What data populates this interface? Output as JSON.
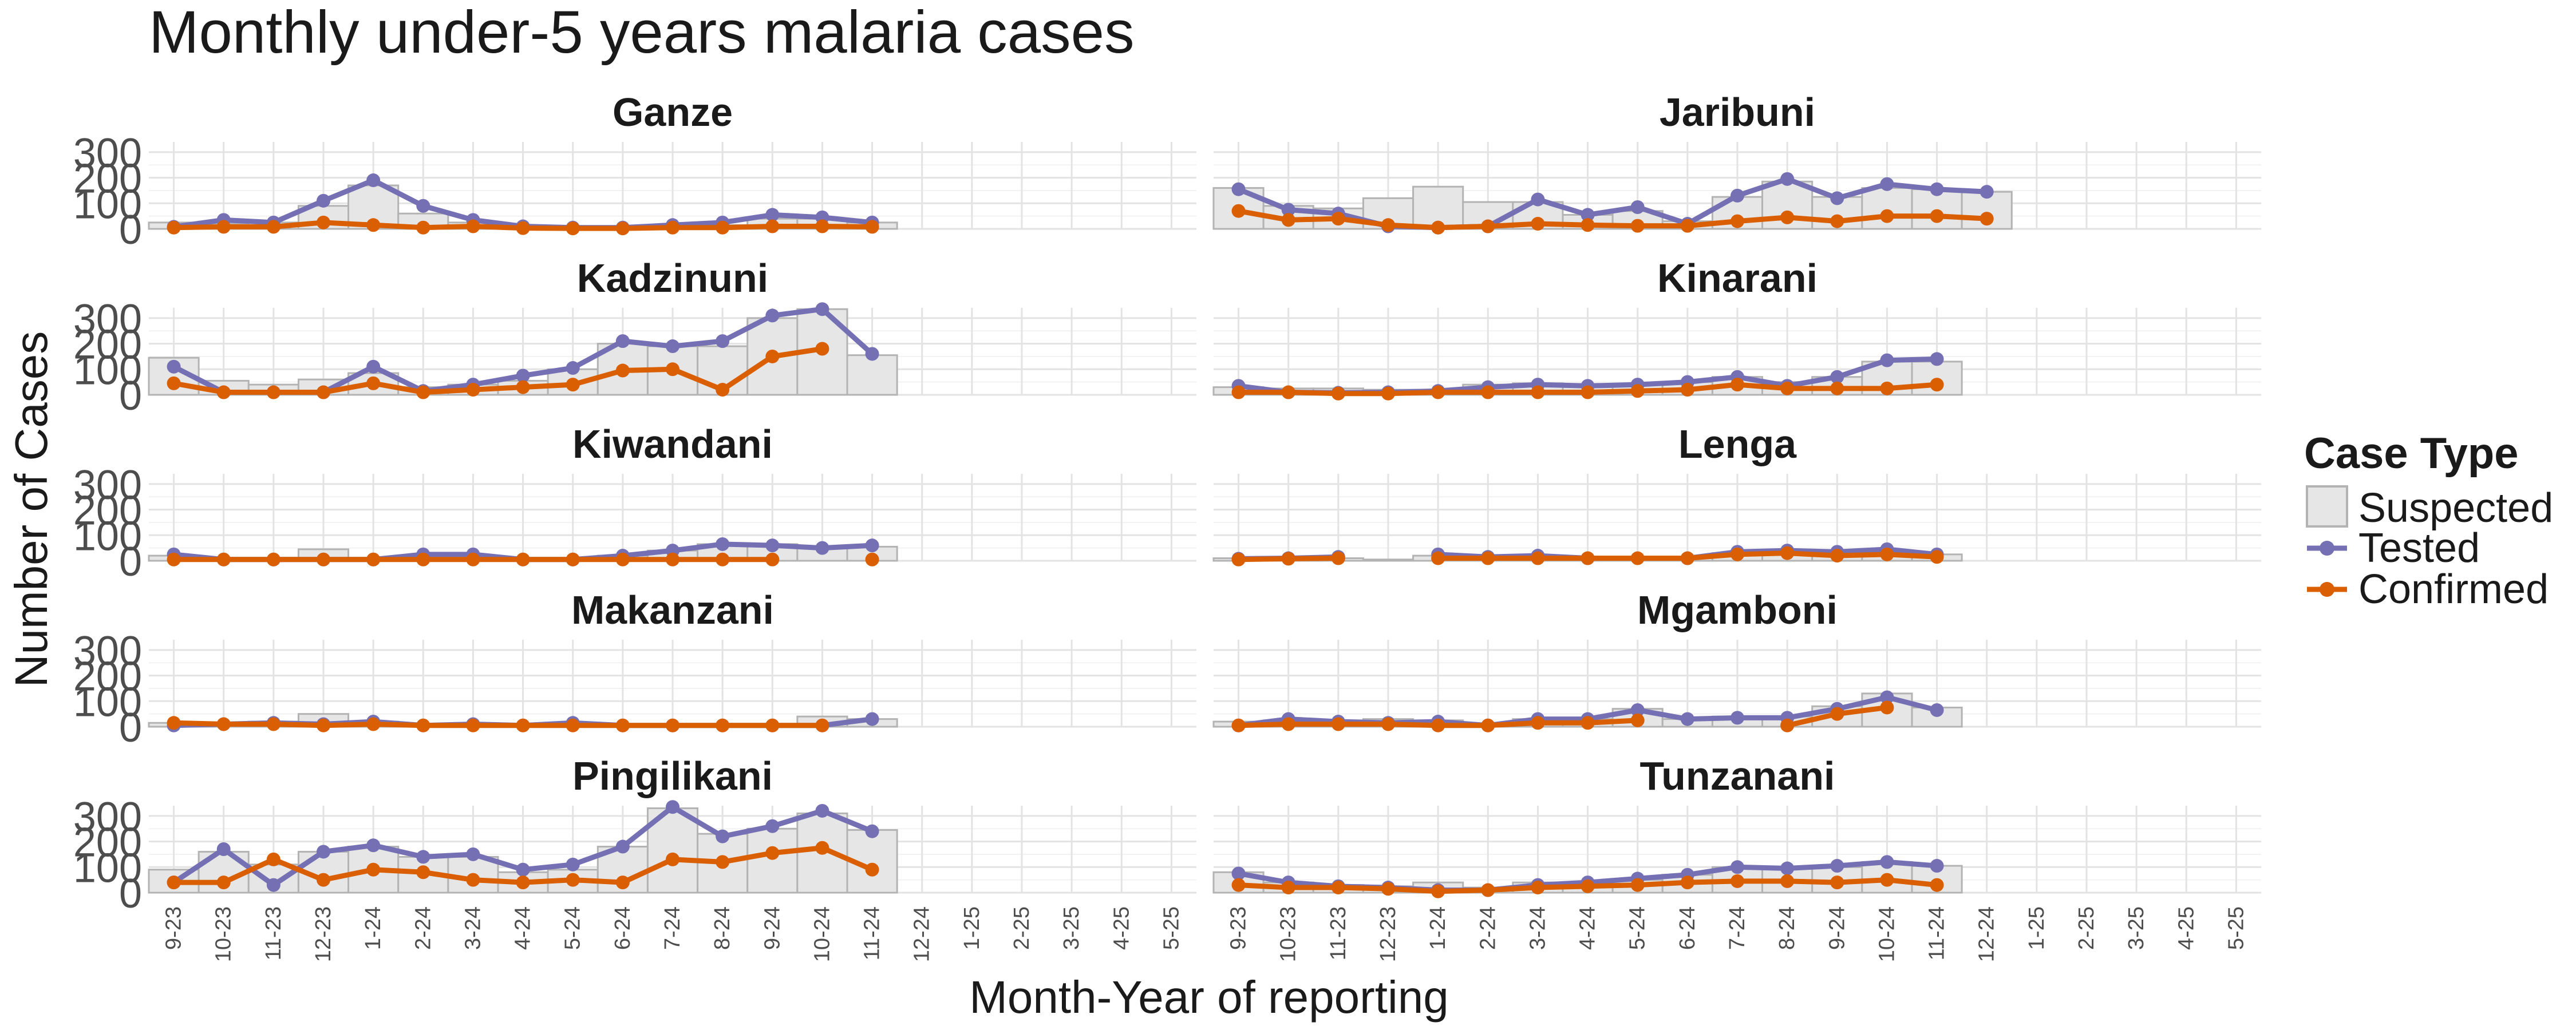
{
  "chart_data": {
    "type": "bar",
    "title": "Monthly under-5 years malaria cases",
    "xlabel": "Month-Year of reporting",
    "ylabel": "Number of Cases",
    "ylim": [
      0,
      340
    ],
    "yticks": [
      0,
      100,
      200,
      300
    ],
    "grid": true,
    "categories": [
      "9-23",
      "10-23",
      "11-23",
      "12-23",
      "1-24",
      "2-24",
      "3-24",
      "4-24",
      "5-24",
      "6-24",
      "7-24",
      "8-24",
      "9-24",
      "10-24",
      "11-24",
      "12-24",
      "1-25",
      "2-25",
      "3-25",
      "4-25",
      "5-25"
    ],
    "legend": {
      "title": "Case Type",
      "position": "right",
      "items": [
        {
          "label": "Suspected",
          "kind": "bar"
        },
        {
          "label": "Tested",
          "kind": "line",
          "color": "#7570b3"
        },
        {
          "label": "Confirmed",
          "kind": "line",
          "color": "#d95f02"
        }
      ]
    },
    "colors": {
      "suspected_fill": "#e6e6e6",
      "suspected_stroke": "#b3b3b3",
      "tested": "#7570b3",
      "confirmed": "#d95f02"
    },
    "panels": [
      {
        "name": "Ganze",
        "suspected": [
          25,
          20,
          25,
          90,
          170,
          60,
          25,
          8,
          5,
          5,
          10,
          15,
          40,
          40,
          25,
          null,
          null,
          null,
          null,
          null,
          null
        ],
        "tested": [
          8,
          35,
          25,
          110,
          190,
          90,
          35,
          10,
          5,
          5,
          15,
          25,
          55,
          45,
          25,
          null,
          null,
          null,
          null,
          null,
          null
        ],
        "confirmed": [
          5,
          8,
          8,
          25,
          15,
          5,
          10,
          3,
          2,
          2,
          5,
          5,
          10,
          10,
          8,
          null,
          null,
          null,
          null,
          null,
          null
        ]
      },
      {
        "name": "Jaribuni",
        "suspected": [
          160,
          90,
          80,
          120,
          165,
          105,
          105,
          55,
          70,
          30,
          125,
          185,
          125,
          160,
          155,
          145,
          null,
          null,
          null,
          null,
          null
        ],
        "tested": [
          155,
          75,
          60,
          10,
          5,
          10,
          115,
          55,
          85,
          20,
          130,
          195,
          120,
          175,
          155,
          145,
          null,
          null,
          null,
          null,
          null
        ],
        "confirmed": [
          70,
          35,
          40,
          15,
          5,
          10,
          20,
          15,
          12,
          12,
          30,
          45,
          30,
          50,
          50,
          40,
          null,
          null,
          null,
          null,
          null
        ]
      },
      {
        "name": "Kadzinuni",
        "suspected": [
          145,
          55,
          40,
          60,
          85,
          30,
          40,
          55,
          100,
          200,
          190,
          190,
          300,
          335,
          155,
          null,
          null,
          null,
          null,
          null,
          null
        ],
        "tested": [
          110,
          10,
          10,
          10,
          110,
          15,
          40,
          75,
          105,
          210,
          190,
          210,
          310,
          335,
          160,
          null,
          null,
          null,
          null,
          null,
          null
        ],
        "confirmed": [
          45,
          10,
          10,
          10,
          45,
          10,
          20,
          30,
          40,
          95,
          100,
          20,
          150,
          180,
          null,
          null,
          null,
          null,
          null,
          null,
          null
        ]
      },
      {
        "name": "Kinarani",
        "suspected": [
          30,
          25,
          25,
          20,
          20,
          40,
          45,
          40,
          40,
          50,
          70,
          50,
          70,
          130,
          130,
          null,
          null,
          null,
          null,
          null,
          null
        ],
        "tested": [
          35,
          10,
          8,
          10,
          15,
          30,
          40,
          35,
          40,
          50,
          70,
          35,
          70,
          135,
          140,
          null,
          null,
          null,
          null,
          null,
          null
        ],
        "confirmed": [
          10,
          10,
          5,
          5,
          10,
          10,
          10,
          10,
          15,
          20,
          40,
          25,
          25,
          25,
          40,
          null,
          null,
          null,
          null,
          null,
          null
        ]
      },
      {
        "name": "Kiwandani",
        "suspected": [
          20,
          10,
          8,
          45,
          10,
          20,
          20,
          10,
          10,
          20,
          40,
          65,
          65,
          55,
          55,
          null,
          null,
          null,
          null,
          null,
          null
        ],
        "tested": [
          25,
          5,
          5,
          5,
          5,
          25,
          25,
          5,
          5,
          20,
          40,
          65,
          60,
          50,
          60,
          null,
          null,
          null,
          null,
          null,
          null
        ],
        "confirmed": [
          5,
          5,
          5,
          5,
          5,
          5,
          5,
          5,
          5,
          5,
          5,
          5,
          5,
          null,
          5,
          null,
          null,
          null,
          null,
          null,
          null
        ]
      },
      {
        "name": "Lenga",
        "suspected": [
          10,
          10,
          10,
          5,
          20,
          15,
          15,
          10,
          10,
          10,
          30,
          35,
          30,
          40,
          25,
          null,
          null,
          null,
          null,
          null,
          null
        ],
        "tested": [
          8,
          10,
          15,
          null,
          25,
          15,
          20,
          10,
          null,
          10,
          35,
          40,
          35,
          45,
          25,
          null,
          null,
          null,
          null,
          null,
          null
        ],
        "confirmed": [
          5,
          8,
          10,
          null,
          10,
          10,
          10,
          10,
          10,
          10,
          25,
          30,
          20,
          25,
          15,
          null,
          null,
          null,
          null,
          null,
          null
        ]
      },
      {
        "name": "Makanzani",
        "suspected": [
          15,
          15,
          20,
          50,
          20,
          8,
          8,
          8,
          15,
          8,
          5,
          5,
          5,
          40,
          30,
          null,
          null,
          null,
          null,
          null,
          null
        ],
        "tested": [
          5,
          10,
          15,
          10,
          20,
          5,
          10,
          5,
          15,
          5,
          5,
          5,
          5,
          5,
          30,
          null,
          null,
          null,
          null,
          null,
          null
        ],
        "confirmed": [
          15,
          10,
          10,
          5,
          10,
          5,
          5,
          5,
          5,
          5,
          5,
          5,
          5,
          5,
          null,
          null,
          null,
          null,
          null,
          null,
          null
        ]
      },
      {
        "name": "Mgamboni",
        "suspected": [
          20,
          25,
          25,
          30,
          25,
          10,
          30,
          30,
          70,
          30,
          40,
          40,
          80,
          130,
          75,
          null,
          null,
          null,
          null,
          null,
          null
        ],
        "tested": [
          5,
          30,
          20,
          15,
          20,
          5,
          30,
          30,
          65,
          30,
          35,
          35,
          70,
          115,
          65,
          null,
          null,
          null,
          null,
          null,
          null
        ],
        "confirmed": [
          5,
          10,
          10,
          10,
          5,
          5,
          15,
          15,
          25,
          null,
          null,
          5,
          50,
          75,
          null,
          null,
          null,
          null,
          null,
          null,
          null
        ]
      },
      {
        "name": "Pingilikani",
        "suspected": [
          90,
          160,
          110,
          160,
          180,
          140,
          140,
          80,
          90,
          180,
          330,
          230,
          250,
          310,
          245,
          null,
          null,
          null,
          null,
          null,
          null
        ],
        "tested": [
          40,
          170,
          30,
          160,
          185,
          140,
          150,
          90,
          110,
          180,
          335,
          220,
          260,
          320,
          240,
          null,
          null,
          null,
          null,
          null,
          null
        ],
        "confirmed": [
          40,
          40,
          130,
          50,
          90,
          80,
          50,
          40,
          50,
          40,
          130,
          120,
          155,
          175,
          90,
          null,
          null,
          null,
          null,
          null,
          null
        ]
      },
      {
        "name": "Tunzanani",
        "suspected": [
          80,
          40,
          30,
          25,
          40,
          20,
          40,
          40,
          50,
          70,
          100,
          95,
          100,
          120,
          105,
          null,
          null,
          null,
          null,
          null,
          null
        ],
        "tested": [
          75,
          40,
          25,
          20,
          10,
          10,
          30,
          40,
          55,
          70,
          100,
          95,
          105,
          120,
          105,
          null,
          null,
          null,
          null,
          null,
          null
        ],
        "confirmed": [
          30,
          20,
          20,
          15,
          5,
          10,
          20,
          25,
          30,
          40,
          45,
          45,
          40,
          50,
          30,
          null,
          null,
          null,
          null,
          null,
          null
        ]
      }
    ]
  }
}
